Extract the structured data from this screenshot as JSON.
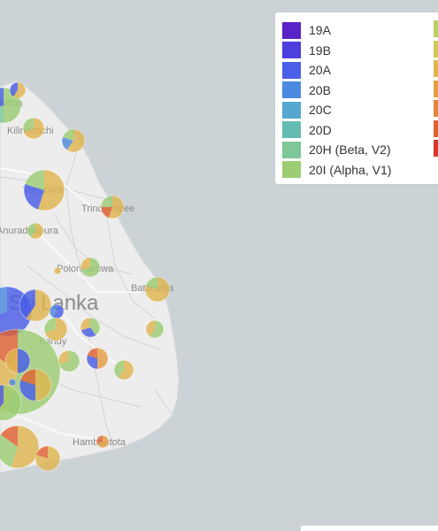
{
  "map": {
    "country_label": "Sri Lanka",
    "cities": [
      "Kilinochchi",
      "Vavuniya",
      "Trincomalee",
      "Anuradhapura",
      "Polonnaruwa",
      "Batticaloa",
      "Kandy",
      "Hambantota",
      "Jaffna"
    ],
    "colors": {
      "land": "#eeeeee",
      "water": "#ccd3d6",
      "border": "#d0d0d0"
    }
  },
  "legend": {
    "items": [
      {
        "label": "19A",
        "color": "#5a23c8"
      },
      {
        "label": "19B",
        "color": "#4c3fde"
      },
      {
        "label": "20A",
        "color": "#4a5ee8"
      },
      {
        "label": "20B",
        "color": "#4b8ae0"
      },
      {
        "label": "20C",
        "color": "#56a8d0"
      },
      {
        "label": "20D",
        "color": "#63bcb2"
      },
      {
        "label": "20H (Beta, V2)",
        "color": "#7ec796"
      },
      {
        "label": "20I (Alpha, V1)",
        "color": "#9ccd74"
      }
    ],
    "right_colors": [
      "#b9d263",
      "#d1c75a",
      "#e0b651",
      "#e49e45",
      "#e4853c",
      "#e06233",
      "#d53a2c"
    ]
  }
}
